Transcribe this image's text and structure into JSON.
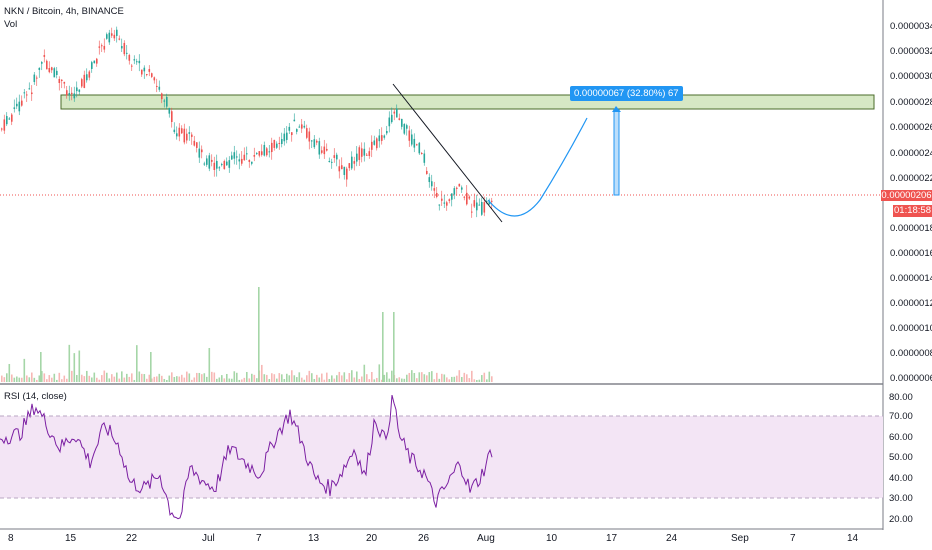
{
  "header": {
    "symbol_title": "NKN / Bitcoin, 4h, BINANCE",
    "vol_label": "Vol"
  },
  "rsi": {
    "label": "RSI (14, close)",
    "ticks": [
      "80.00",
      "70.00",
      "60.00",
      "50.00",
      "40.00",
      "30.00",
      "20.00"
    ],
    "upper_band": 70,
    "lower_band": 30,
    "current": 54
  },
  "price_axis": {
    "ticks": [
      "0.00000340",
      "0.00000320",
      "0.00000300",
      "0.00000280",
      "0.00000260",
      "0.00000240",
      "0.00000220",
      "0.00000180",
      "0.00000160",
      "0.00000140",
      "0.00000120",
      "0.00000100",
      "0.00000080",
      "0.00000060"
    ],
    "current_price": "0.00000206",
    "countdown": "01:18:58"
  },
  "time_axis": {
    "ticks": [
      "8",
      "15",
      "22",
      "Jul",
      "7",
      "13",
      "20",
      "26",
      "Aug",
      "10",
      "17",
      "24",
      "Sep",
      "7",
      "14"
    ]
  },
  "measure": {
    "label": "0.00000067 (32.80%) 67"
  },
  "colors": {
    "up": "#26a69a",
    "down": "#ef5350",
    "rsi_line": "#7b1fa2",
    "rsi_band": "#f3e5f5",
    "zone_fill": "#d6e8c4",
    "zone_border": "#4a6b2a",
    "forecast": "#2196f3",
    "current_price": "#ef5350"
  }
}
